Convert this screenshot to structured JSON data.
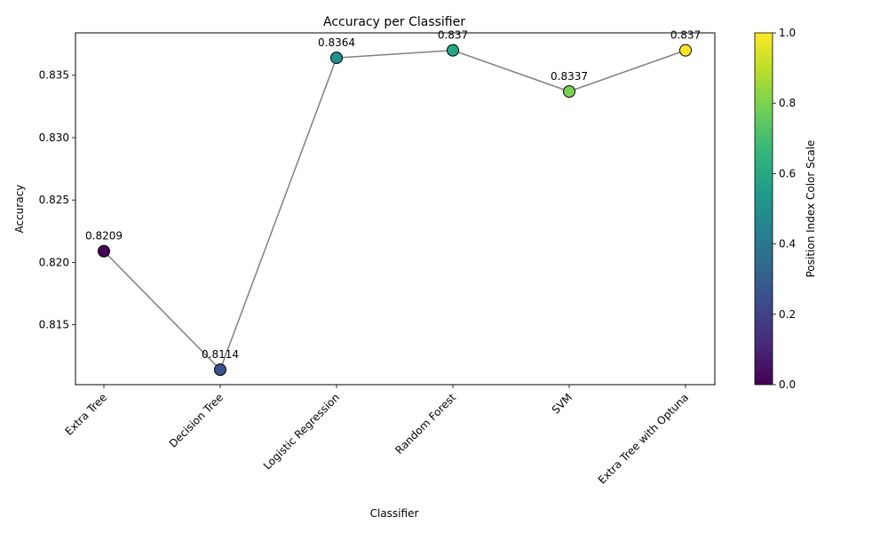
{
  "chart_data": {
    "type": "line",
    "title": "Accuracy per Classifier",
    "xlabel": "Classifier",
    "ylabel": "Accuracy",
    "categories": [
      "Extra Tree",
      "Decision Tree",
      "Logistic Regression",
      "Random Forest",
      "SVM",
      "Extra Tree with Optuna"
    ],
    "values": [
      0.8209,
      0.8114,
      0.8364,
      0.837,
      0.8337,
      0.837
    ],
    "data_labels": [
      "0.8209",
      "0.8114",
      "0.8364",
      "0.837",
      "0.8337",
      "0.837"
    ],
    "ylim": [
      0.8102,
      0.8384
    ],
    "yticks": [
      0.815,
      0.82,
      0.825,
      0.83,
      0.835
    ],
    "ytick_labels": [
      "0.815",
      "0.820",
      "0.825",
      "0.830",
      "0.835"
    ],
    "grid": false,
    "line_color": "#808080",
    "marker_edge_color": "#000000",
    "point_colors": [
      "#440154",
      "#3b528b",
      "#21918c",
      "#22a884",
      "#7ad151",
      "#fde725"
    ],
    "colorbar": {
      "label": "Position Index Color Scale",
      "range": [
        0.0,
        1.0
      ],
      "ticks": [
        "0.0",
        "0.2",
        "0.4",
        "0.6",
        "0.8",
        "1.0"
      ],
      "colors": [
        "#440154",
        "#482878",
        "#3e4989",
        "#31688e",
        "#26828e",
        "#1f9e89",
        "#35b779",
        "#6ece58",
        "#b5de2b",
        "#fde725"
      ]
    }
  }
}
